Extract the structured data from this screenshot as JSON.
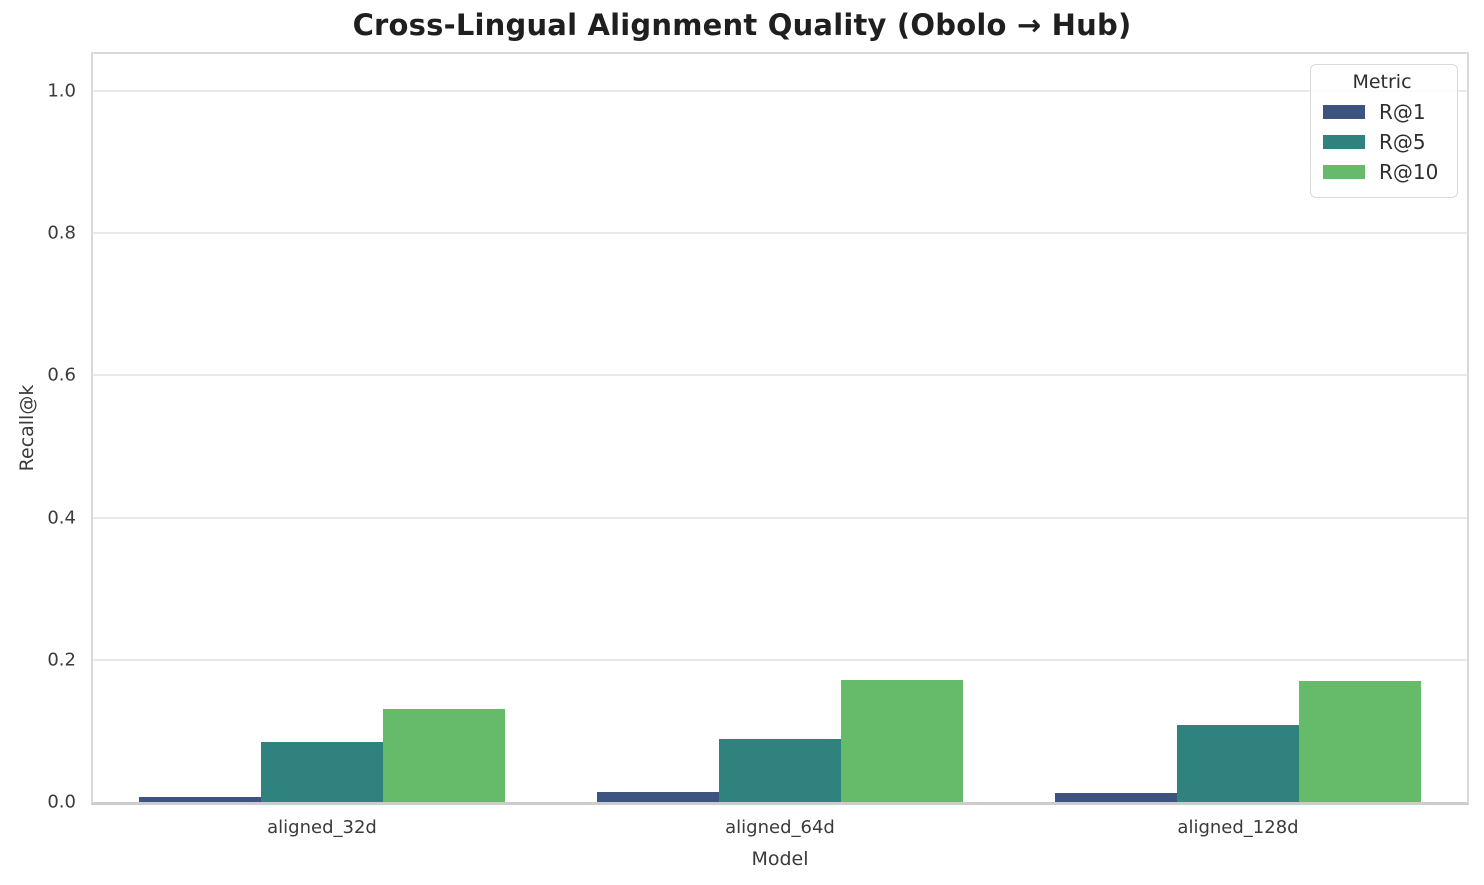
{
  "title": "Cross-Lingual Alignment Quality (Obolo → Hub)",
  "chart_data": {
    "type": "bar",
    "title": "Cross-Lingual Alignment Quality (Obolo → Hub)",
    "categories": [
      "aligned_32d",
      "aligned_64d",
      "aligned_128d"
    ],
    "series": [
      {
        "name": "R@1",
        "color": "#3e5480",
        "values": [
          0.007,
          0.014,
          0.012
        ]
      },
      {
        "name": "R@5",
        "color": "#2f827e",
        "values": [
          0.085,
          0.088,
          0.109
        ]
      },
      {
        "name": "R@10",
        "color": "#65bb6a",
        "values": [
          0.131,
          0.172,
          0.17
        ]
      }
    ],
    "xlabel": "Model",
    "ylabel": "Recall@k",
    "yticks": [
      0.0,
      0.2,
      0.4,
      0.6,
      0.8,
      1.0
    ],
    "ytick_labels": [
      "0.0",
      "0.2",
      "0.4",
      "0.6",
      "0.8",
      "1.0"
    ],
    "ylim": [
      0,
      1.052
    ],
    "grid": "horizontal",
    "legend": {
      "title": "Metric",
      "position": "upper right"
    },
    "colors": {
      "grid": "#e9e9e9",
      "spine": "#d9d9d9",
      "text": "#3a3a3a",
      "title_text": "#1f1f1f",
      "background": "#ffffff"
    }
  }
}
